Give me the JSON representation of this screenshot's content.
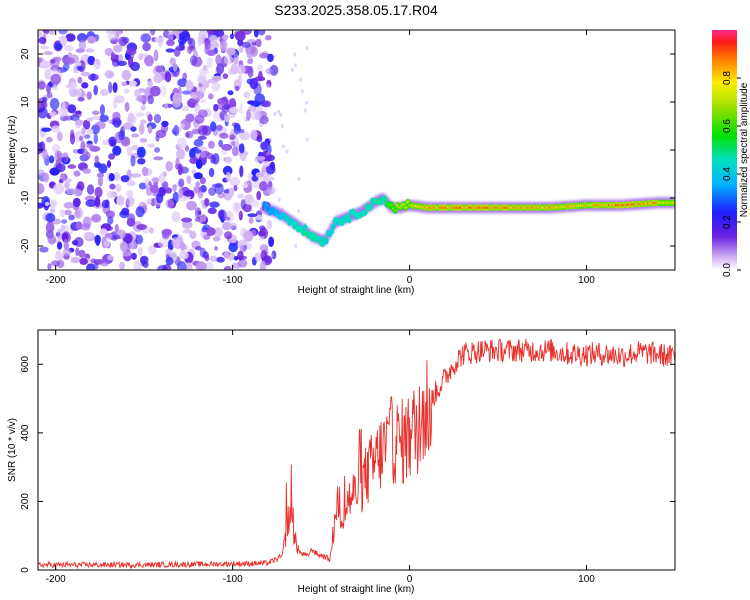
{
  "title": "S233.2025.358.05.17.R04",
  "chart_data": [
    {
      "type": "heatmap",
      "name": "spectrogram",
      "xlabel": "Height of straight line (km)",
      "ylabel": "Frequency (Hz)",
      "xlim": [
        -210,
        150
      ],
      "ylim": [
        -25,
        25
      ],
      "xticks": [
        -200,
        -100,
        0,
        100
      ],
      "yticks": [
        -20,
        -10,
        0,
        10,
        20
      ],
      "colorbar": {
        "label": "Normalized spectral amplitude",
        "range": [
          0,
          1
        ],
        "ticks": [
          0.0,
          0.2,
          0.4,
          0.6,
          0.8
        ],
        "tick_labels": [
          "0.0",
          "0.2",
          "0.4",
          "0.6",
          "0.8"
        ]
      },
      "noise_region_x": [
        -210,
        -80
      ],
      "signal_track": {
        "x": [
          -82,
          -75,
          -70,
          -62,
          -55,
          -48,
          -42,
          -35,
          -28,
          -20,
          -15,
          -10,
          -5,
          0,
          10,
          20,
          40,
          60,
          80,
          100,
          120,
          140,
          150
        ],
        "freq": [
          -12,
          -13,
          -14,
          -16,
          -18,
          -19,
          -15,
          -14,
          -13,
          -11,
          -10,
          -12,
          -12,
          -11.5,
          -12,
          -12,
          -12,
          -12,
          -12,
          -11.5,
          -11.5,
          -11,
          -11
        ],
        "amplitude": [
          0.25,
          0.3,
          0.45,
          0.5,
          0.55,
          0.5,
          0.45,
          0.5,
          0.5,
          0.55,
          0.5,
          0.7,
          0.8,
          0.8,
          0.9,
          0.95,
          0.95,
          0.95,
          0.9,
          0.85,
          0.95,
          0.9,
          0.8
        ]
      }
    },
    {
      "type": "line",
      "name": "snr",
      "xlabel": "Height of straight line (km)",
      "ylabel": "SNR (10 * v/v)",
      "xlim": [
        -210,
        150
      ],
      "ylim": [
        0,
        700
      ],
      "xticks": [
        -200,
        -100,
        0,
        100
      ],
      "yticks": [
        0,
        200,
        400,
        600
      ],
      "series": [
        {
          "name": "SNR",
          "color": "#e8312c",
          "x": [
            -210,
            -150,
            -100,
            -80,
            -72,
            -68,
            -65,
            -62,
            -58,
            -55,
            -52,
            -48,
            -45,
            -42,
            -40,
            -38,
            -35,
            -30,
            -25,
            -20,
            -15,
            -10,
            -5,
            0,
            5,
            10,
            15,
            20,
            25,
            30,
            40,
            50,
            60,
            70,
            80,
            90,
            100,
            110,
            120,
            130,
            140,
            150
          ],
          "y": [
            15,
            15,
            18,
            20,
            40,
            160,
            90,
            50,
            40,
            60,
            45,
            40,
            30,
            150,
            200,
            150,
            200,
            230,
            270,
            310,
            350,
            380,
            370,
            390,
            420,
            480,
            520,
            560,
            600,
            630,
            640,
            640,
            640,
            640,
            640,
            630,
            630,
            630,
            625,
            635,
            630,
            620
          ]
        }
      ]
    }
  ]
}
